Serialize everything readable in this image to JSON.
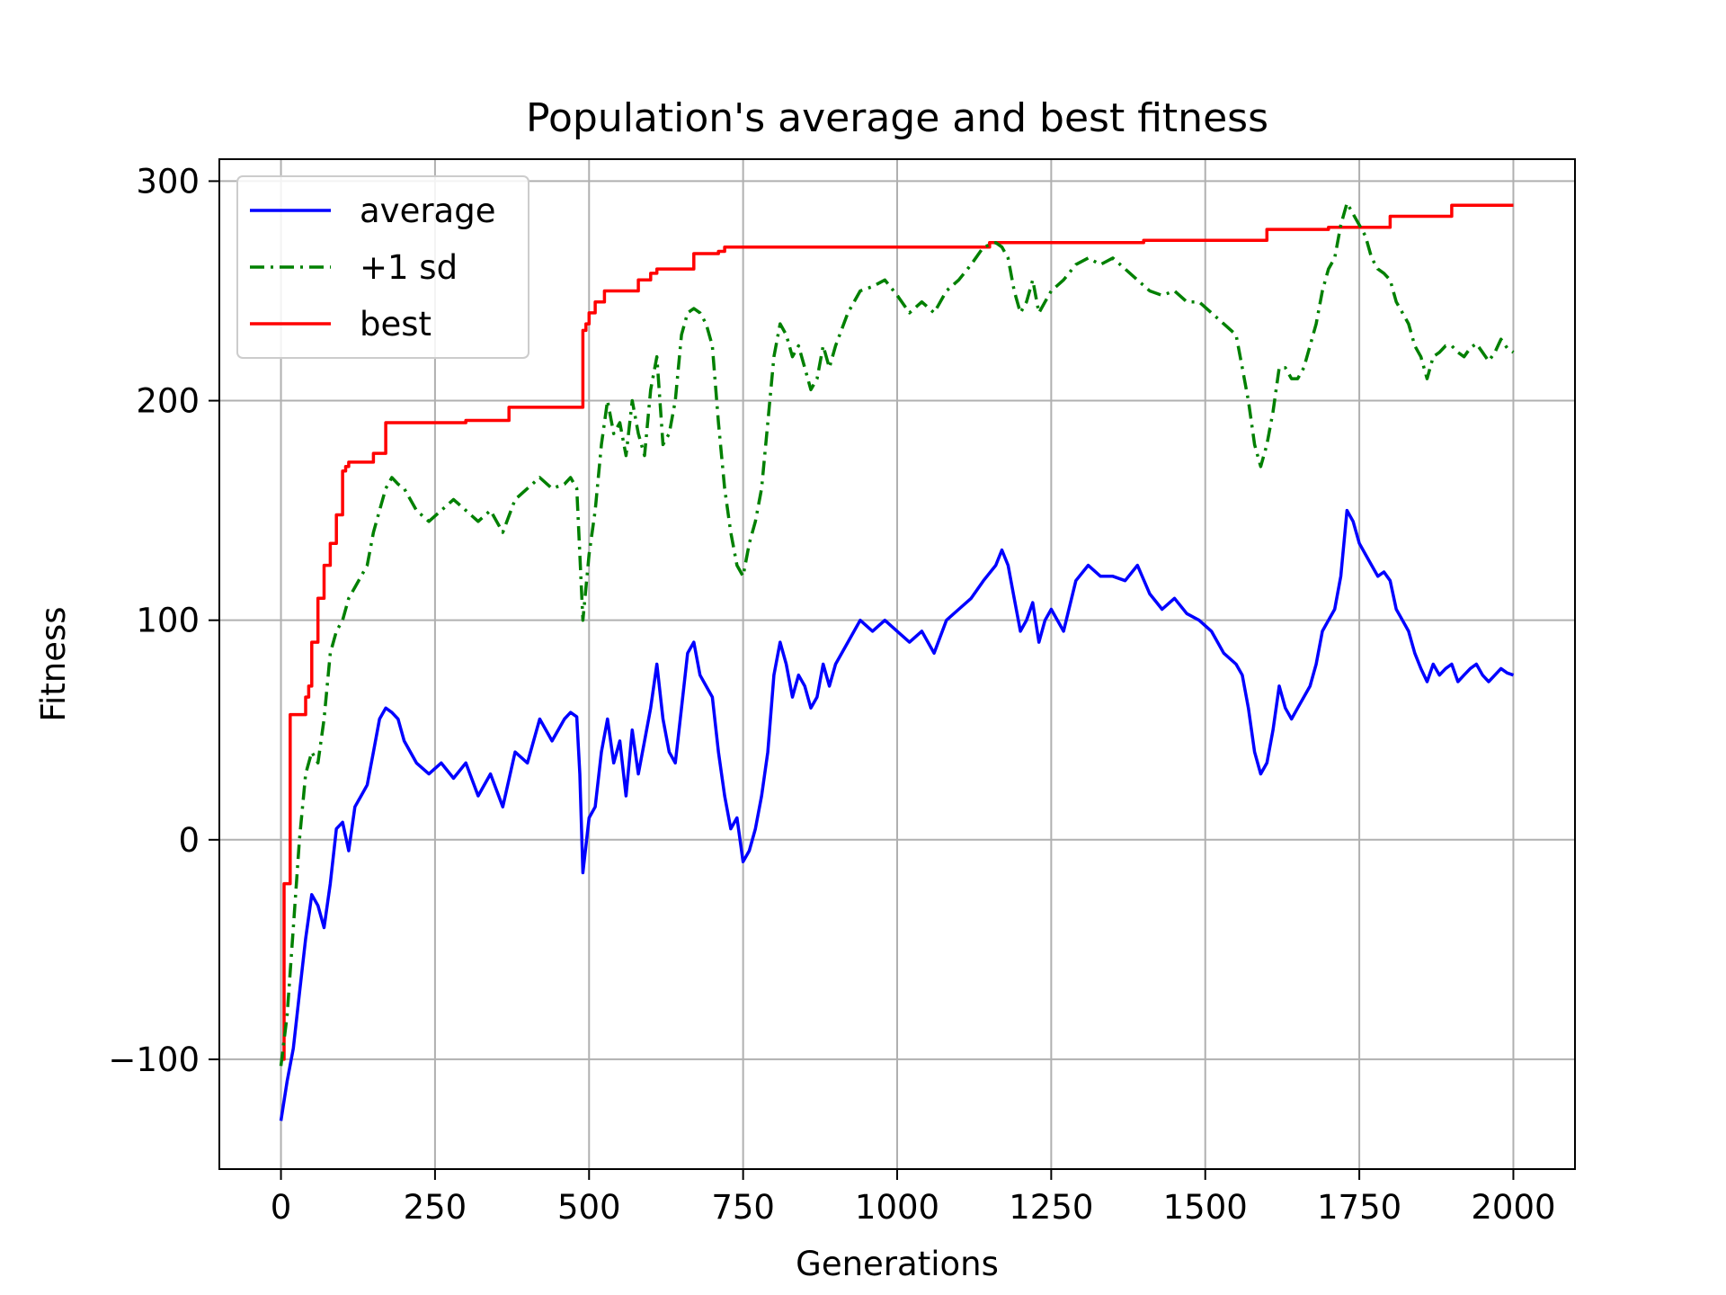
{
  "chart_data": {
    "type": "line",
    "title": "Population's average and best fitness",
    "xlabel": "Generations",
    "ylabel": "Fitness",
    "xlim": [
      -100,
      2100
    ],
    "ylim": [
      -150,
      310
    ],
    "xticks": [
      0,
      250,
      500,
      750,
      1000,
      1250,
      1500,
      1750,
      2000
    ],
    "yticks": [
      -100,
      0,
      100,
      200,
      300
    ],
    "ytick_labels": [
      "−100",
      "0",
      "100",
      "200",
      "300"
    ],
    "grid": true,
    "legend": {
      "position": "top-left"
    },
    "series": [
      {
        "name": "average",
        "color": "#0000ff",
        "style": "solid",
        "x": [
          0,
          10,
          20,
          30,
          40,
          50,
          60,
          70,
          80,
          90,
          100,
          110,
          120,
          130,
          140,
          150,
          160,
          170,
          180,
          190,
          200,
          220,
          240,
          260,
          280,
          300,
          320,
          340,
          360,
          380,
          400,
          420,
          440,
          460,
          470,
          480,
          485,
          490,
          500,
          510,
          520,
          530,
          540,
          550,
          560,
          570,
          580,
          590,
          600,
          610,
          620,
          630,
          640,
          650,
          660,
          670,
          680,
          690,
          700,
          710,
          720,
          730,
          740,
          750,
          760,
          770,
          780,
          790,
          800,
          810,
          820,
          830,
          840,
          850,
          860,
          870,
          880,
          890,
          900,
          920,
          940,
          960,
          980,
          1000,
          1020,
          1040,
          1060,
          1080,
          1100,
          1120,
          1140,
          1160,
          1170,
          1180,
          1190,
          1200,
          1210,
          1220,
          1230,
          1240,
          1250,
          1270,
          1290,
          1310,
          1330,
          1350,
          1370,
          1390,
          1410,
          1430,
          1450,
          1470,
          1490,
          1510,
          1530,
          1550,
          1560,
          1570,
          1580,
          1590,
          1600,
          1610,
          1620,
          1630,
          1640,
          1650,
          1660,
          1670,
          1680,
          1690,
          1700,
          1710,
          1720,
          1730,
          1740,
          1750,
          1760,
          1770,
          1780,
          1790,
          1800,
          1810,
          1820,
          1830,
          1840,
          1850,
          1860,
          1870,
          1880,
          1890,
          1900,
          1910,
          1920,
          1930,
          1940,
          1950,
          1960,
          1970,
          1980,
          1990,
          2000
        ],
        "y": [
          -128,
          -110,
          -95,
          -70,
          -45,
          -25,
          -30,
          -40,
          -20,
          5,
          8,
          -5,
          15,
          20,
          25,
          40,
          55,
          60,
          58,
          55,
          45,
          35,
          30,
          35,
          28,
          35,
          20,
          30,
          15,
          40,
          35,
          55,
          45,
          55,
          58,
          56,
          30,
          -15,
          10,
          15,
          40,
          55,
          35,
          45,
          20,
          50,
          30,
          45,
          60,
          80,
          55,
          40,
          35,
          60,
          85,
          90,
          75,
          70,
          65,
          40,
          20,
          5,
          10,
          -10,
          -5,
          5,
          20,
          40,
          75,
          90,
          80,
          65,
          75,
          70,
          60,
          65,
          80,
          70,
          80,
          90,
          100,
          95,
          100,
          95,
          90,
          95,
          85,
          100,
          105,
          110,
          118,
          125,
          132,
          125,
          110,
          95,
          100,
          108,
          90,
          100,
          105,
          95,
          118,
          125,
          120,
          120,
          118,
          125,
          112,
          105,
          110,
          103,
          100,
          95,
          85,
          80,
          75,
          60,
          40,
          30,
          35,
          50,
          70,
          60,
          55,
          60,
          65,
          70,
          80,
          95,
          100,
          105,
          120,
          150,
          145,
          135,
          130,
          125,
          120,
          122,
          118,
          105,
          100,
          95,
          85,
          78,
          72,
          80,
          75,
          78,
          80,
          72,
          75,
          78,
          80,
          75,
          72,
          75,
          78,
          76,
          75
        ]
      },
      {
        "name": "+1 sd",
        "color": "#008000",
        "style": "dashdot",
        "x": [
          0,
          10,
          20,
          30,
          40,
          50,
          60,
          70,
          80,
          90,
          100,
          110,
          120,
          130,
          140,
          150,
          160,
          170,
          180,
          190,
          200,
          220,
          240,
          260,
          280,
          300,
          320,
          340,
          360,
          380,
          400,
          420,
          440,
          460,
          470,
          480,
          485,
          490,
          500,
          510,
          520,
          530,
          540,
          550,
          560,
          570,
          580,
          590,
          600,
          610,
          620,
          630,
          640,
          650,
          660,
          670,
          680,
          690,
          700,
          710,
          720,
          730,
          740,
          750,
          760,
          770,
          780,
          790,
          800,
          810,
          820,
          830,
          840,
          850,
          860,
          870,
          880,
          890,
          900,
          920,
          940,
          960,
          980,
          1000,
          1020,
          1040,
          1060,
          1080,
          1100,
          1120,
          1140,
          1160,
          1170,
          1180,
          1190,
          1200,
          1210,
          1220,
          1230,
          1240,
          1250,
          1270,
          1290,
          1310,
          1330,
          1350,
          1370,
          1390,
          1410,
          1430,
          1450,
          1470,
          1490,
          1510,
          1530,
          1550,
          1560,
          1570,
          1580,
          1590,
          1600,
          1610,
          1620,
          1630,
          1640,
          1650,
          1660,
          1670,
          1680,
          1690,
          1700,
          1710,
          1720,
          1730,
          1740,
          1750,
          1760,
          1770,
          1780,
          1790,
          1800,
          1810,
          1820,
          1830,
          1840,
          1850,
          1860,
          1870,
          1880,
          1890,
          1900,
          1910,
          1920,
          1930,
          1940,
          1950,
          1960,
          1970,
          1980,
          1990,
          2000
        ],
        "y": [
          -103,
          -80,
          -40,
          0,
          30,
          40,
          35,
          55,
          85,
          95,
          100,
          110,
          115,
          120,
          125,
          140,
          150,
          160,
          165,
          162,
          160,
          150,
          145,
          150,
          155,
          150,
          145,
          150,
          140,
          155,
          160,
          165,
          160,
          162,
          165,
          160,
          130,
          100,
          130,
          150,
          180,
          200,
          185,
          190,
          175,
          200,
          185,
          175,
          205,
          220,
          180,
          185,
          200,
          230,
          240,
          242,
          240,
          235,
          225,
          190,
          160,
          140,
          125,
          120,
          135,
          145,
          160,
          190,
          220,
          235,
          230,
          220,
          225,
          215,
          205,
          210,
          225,
          215,
          225,
          240,
          250,
          252,
          255,
          248,
          240,
          245,
          240,
          250,
          255,
          262,
          270,
          272,
          270,
          265,
          250,
          240,
          245,
          255,
          240,
          245,
          250,
          255,
          262,
          265,
          262,
          265,
          260,
          255,
          250,
          248,
          250,
          245,
          245,
          240,
          235,
          230,
          215,
          200,
          180,
          170,
          180,
          195,
          215,
          215,
          210,
          210,
          215,
          225,
          235,
          250,
          260,
          265,
          280,
          290,
          285,
          280,
          275,
          265,
          260,
          258,
          255,
          245,
          240,
          235,
          225,
          220,
          210,
          220,
          222,
          225,
          225,
          222,
          220,
          224,
          226,
          222,
          218,
          222,
          228,
          224,
          222
        ]
      },
      {
        "name": "best",
        "color": "#ff0000",
        "style": "step",
        "x": [
          0,
          5,
          15,
          25,
          40,
          45,
          50,
          60,
          70,
          80,
          90,
          100,
          105,
          110,
          130,
          150,
          170,
          300,
          370,
          490,
          495,
          500,
          510,
          525,
          580,
          600,
          610,
          670,
          710,
          720,
          1150,
          1200,
          1400,
          1600,
          1700,
          1780,
          1800,
          1900,
          2000
        ],
        "y": [
          -100,
          -20,
          57,
          57,
          65,
          70,
          90,
          110,
          125,
          135,
          148,
          168,
          170,
          172,
          172,
          176,
          190,
          191,
          197,
          232,
          235,
          240,
          245,
          250,
          255,
          258,
          260,
          267,
          268,
          270,
          272,
          272,
          273,
          278,
          279,
          279,
          284,
          289,
          289
        ]
      }
    ]
  }
}
